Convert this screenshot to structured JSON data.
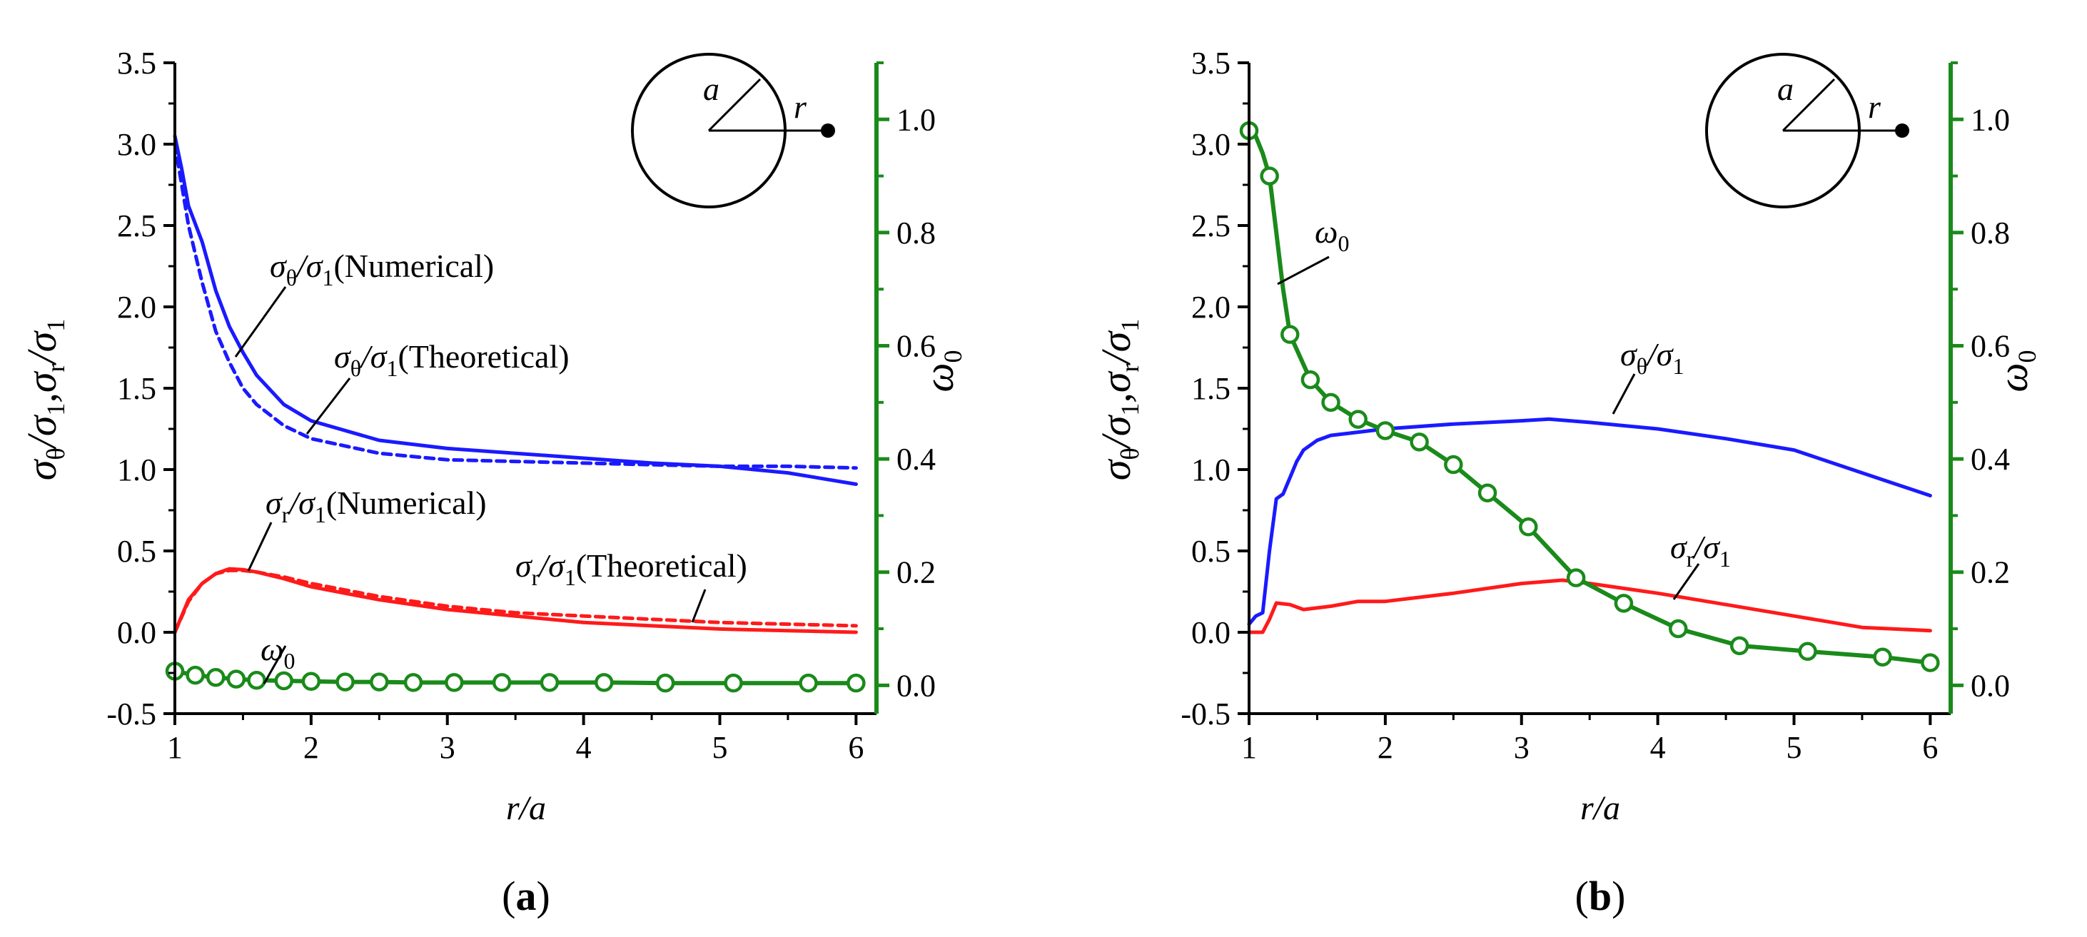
{
  "chart_data": [
    {
      "panel": "(a)",
      "type": "line",
      "xlabel": "r/a",
      "ylabel": "σθ/σ1, σr/σ1",
      "y2label": "ω0",
      "xlim": [
        1,
        6.15
      ],
      "ylim": [
        -0.5,
        3.5
      ],
      "y2lim": [
        -0.05,
        1.1
      ],
      "xticks": [
        "1",
        "2",
        "3",
        "4",
        "5",
        "6"
      ],
      "yticks": [
        "-0.5",
        "0.0",
        "0.5",
        "1.0",
        "1.5",
        "2.0",
        "2.5",
        "3.0",
        "3.5"
      ],
      "y2ticks": [
        "0.0",
        "0.2",
        "0.4",
        "0.6",
        "0.8",
        "1.0"
      ],
      "series": [
        {
          "name": "σθ/σ1(Numerical)",
          "axis": "left",
          "color": "#1a1aff",
          "style": "solid",
          "x": [
            1.0,
            1.05,
            1.1,
            1.2,
            1.3,
            1.4,
            1.5,
            1.6,
            1.8,
            2.0,
            2.5,
            3.0,
            3.5,
            4.0,
            4.5,
            5.0,
            5.5,
            6.0
          ],
          "y": [
            3.05,
            2.85,
            2.62,
            2.4,
            2.1,
            1.88,
            1.72,
            1.58,
            1.4,
            1.3,
            1.18,
            1.13,
            1.1,
            1.07,
            1.04,
            1.02,
            0.98,
            0.91
          ]
        },
        {
          "name": "σθ/σ1(Theoretical)",
          "axis": "left",
          "color": "#1a1aff",
          "style": "dashed",
          "x": [
            1.0,
            1.1,
            1.2,
            1.3,
            1.4,
            1.5,
            1.6,
            1.8,
            2.0,
            2.5,
            3.0,
            3.5,
            4.0,
            4.5,
            5.0,
            5.5,
            6.0
          ],
          "y": [
            3.0,
            2.5,
            2.15,
            1.85,
            1.66,
            1.5,
            1.4,
            1.27,
            1.19,
            1.1,
            1.06,
            1.05,
            1.04,
            1.03,
            1.02,
            1.02,
            1.01
          ]
        },
        {
          "name": "σr/σ1(Numerical)",
          "axis": "left",
          "color": "#ff1a1a",
          "style": "solid",
          "x": [
            1.0,
            1.1,
            1.2,
            1.3,
            1.4,
            1.5,
            1.6,
            1.8,
            2.0,
            2.5,
            3.0,
            3.5,
            4.0,
            4.5,
            5.0,
            5.5,
            6.0
          ],
          "y": [
            0.0,
            0.2,
            0.3,
            0.36,
            0.39,
            0.385,
            0.37,
            0.33,
            0.28,
            0.2,
            0.14,
            0.1,
            0.06,
            0.04,
            0.02,
            0.01,
            0.0
          ]
        },
        {
          "name": "σr/σ1(Theoretical)",
          "axis": "left",
          "color": "#ff1a1a",
          "style": "dashed",
          "x": [
            1.0,
            1.1,
            1.2,
            1.3,
            1.4,
            1.5,
            1.6,
            1.8,
            2.0,
            2.5,
            3.0,
            3.5,
            4.0,
            4.5,
            5.0,
            5.5,
            6.0
          ],
          "y": [
            0.0,
            0.19,
            0.3,
            0.36,
            0.38,
            0.38,
            0.37,
            0.34,
            0.3,
            0.22,
            0.16,
            0.12,
            0.1,
            0.08,
            0.06,
            0.05,
            0.04
          ]
        },
        {
          "name": "ω0",
          "axis": "right",
          "color": "#1a8a1a",
          "style": "solid-markers",
          "x": [
            1.0,
            1.15,
            1.3,
            1.45,
            1.6,
            1.8,
            2.0,
            2.25,
            2.5,
            2.75,
            3.05,
            3.4,
            3.75,
            4.15,
            4.6,
            5.1,
            5.65,
            6.0
          ],
          "y": [
            0.025,
            0.018,
            0.014,
            0.011,
            0.009,
            0.008,
            0.007,
            0.006,
            0.006,
            0.005,
            0.005,
            0.005,
            0.005,
            0.005,
            0.004,
            0.004,
            0.004,
            0.004
          ],
          "markers": [
            1.0,
            1.15,
            1.3,
            1.45,
            1.6,
            1.8,
            2.0,
            2.25,
            2.5,
            2.75,
            3.05,
            3.4,
            3.75,
            4.15,
            4.6,
            5.1,
            5.65,
            6.0
          ]
        }
      ]
    },
    {
      "panel": "(b)",
      "type": "line",
      "xlabel": "r/a",
      "ylabel": "σθ/σ1, σr/σ1",
      "y2label": "ω0",
      "xlim": [
        1,
        6.15
      ],
      "ylim": [
        -0.5,
        3.5
      ],
      "y2lim": [
        -0.05,
        1.1
      ],
      "xticks": [
        "1",
        "2",
        "3",
        "4",
        "5",
        "6"
      ],
      "yticks": [
        "-0.5",
        "0.0",
        "0.5",
        "1.0",
        "1.5",
        "2.0",
        "2.5",
        "3.0",
        "3.5"
      ],
      "y2ticks": [
        "0.0",
        "0.2",
        "0.4",
        "0.6",
        "0.8",
        "1.0"
      ],
      "series": [
        {
          "name": "σθ/σ1",
          "axis": "left",
          "color": "#1a1aff",
          "style": "solid",
          "x": [
            1.0,
            1.05,
            1.1,
            1.15,
            1.2,
            1.25,
            1.3,
            1.35,
            1.4,
            1.5,
            1.6,
            1.8,
            2.0,
            2.5,
            3.0,
            3.2,
            3.5,
            4.0,
            4.5,
            5.0,
            5.5,
            6.0
          ],
          "y": [
            0.05,
            0.1,
            0.12,
            0.5,
            0.82,
            0.85,
            0.95,
            1.05,
            1.12,
            1.18,
            1.21,
            1.23,
            1.25,
            1.28,
            1.3,
            1.31,
            1.29,
            1.25,
            1.19,
            1.12,
            0.98,
            0.84
          ]
        },
        {
          "name": "σr/σ1",
          "axis": "left",
          "color": "#ff1a1a",
          "style": "solid",
          "x": [
            1.0,
            1.1,
            1.15,
            1.2,
            1.3,
            1.4,
            1.6,
            1.8,
            2.0,
            2.5,
            3.0,
            3.3,
            3.5,
            4.0,
            4.5,
            5.0,
            5.5,
            6.0
          ],
          "y": [
            0.0,
            0.0,
            0.08,
            0.18,
            0.17,
            0.14,
            0.16,
            0.19,
            0.19,
            0.24,
            0.3,
            0.32,
            0.3,
            0.24,
            0.17,
            0.1,
            0.03,
            0.01
          ]
        },
        {
          "name": "ω0",
          "axis": "right",
          "color": "#1a8a1a",
          "style": "solid-markers",
          "x": [
            1.0,
            1.05,
            1.1,
            1.15,
            1.2,
            1.25,
            1.3,
            1.45,
            1.6,
            1.8,
            2.0,
            2.25,
            2.5,
            2.75,
            3.05,
            3.4,
            3.75,
            4.15,
            4.6,
            5.1,
            5.65,
            6.0
          ],
          "y": [
            0.98,
            0.97,
            0.94,
            0.9,
            0.8,
            0.7,
            0.62,
            0.54,
            0.5,
            0.47,
            0.45,
            0.43,
            0.39,
            0.34,
            0.28,
            0.19,
            0.145,
            0.1,
            0.07,
            0.06,
            0.05,
            0.04
          ],
          "markers": [
            1.0,
            1.15,
            1.3,
            1.45,
            1.6,
            1.8,
            2.0,
            2.25,
            2.5,
            2.75,
            3.05,
            3.4,
            3.75,
            4.15,
            4.6,
            5.1,
            5.65,
            6.0
          ]
        }
      ]
    }
  ],
  "annotations": {
    "a": {
      "theta_num_main": "σ",
      "theta_num_sub": "θ",
      "theta_num_slash": "/σ",
      "theta_num_sub2": "1",
      "theta_num_tail": "(Numerical)",
      "theta_theo_main": "σ",
      "theta_theo_sub": "θ",
      "theta_theo_slash": "/σ",
      "theta_theo_sub2": "1",
      "theta_theo_tail": "(Theoretical)",
      "r_num_main": "σ",
      "r_num_sub": "r",
      "r_num_slash": "/σ",
      "r_num_sub2": "1",
      "r_num_tail": "(Numerical)",
      "r_theo_main": "σ",
      "r_theo_sub": "r",
      "r_theo_slash": "/σ",
      "r_theo_sub2": "1",
      "r_theo_tail": "(Theoretical)",
      "omega_main": "ω",
      "omega_sub": "0"
    },
    "b": {
      "theta_main": "σ",
      "theta_sub": "θ",
      "theta_slash": "/σ",
      "theta_sub2": "1",
      "r_main": "σ",
      "r_sub": "r",
      "r_slash": "/σ",
      "r_sub2": "1",
      "omega_main": "ω",
      "omega_sub": "0"
    },
    "inset": {
      "a_label": "a",
      "r_label": "r"
    }
  },
  "labels": {
    "ylabel_s1": "σ",
    "ylabel_sub_theta": "θ",
    "ylabel_mid1": "/σ",
    "ylabel_sub1": "1",
    "ylabel_comma": ",σ",
    "ylabel_sub_r": "r",
    "ylabel_mid2": "/σ",
    "ylabel_sub1b": "1",
    "y2label_main": "ω",
    "y2label_sub": "0",
    "xlabel": "r/a",
    "panel_a_open": "(",
    "panel_a_letter": "a",
    "panel_a_close": ")",
    "panel_b_open": "(",
    "panel_b_letter": "b",
    "panel_b_close": ")"
  },
  "colors": {
    "blue": "#1a1aff",
    "red": "#ff1a1a",
    "green": "#1a8a1a",
    "axis": "#000000"
  }
}
